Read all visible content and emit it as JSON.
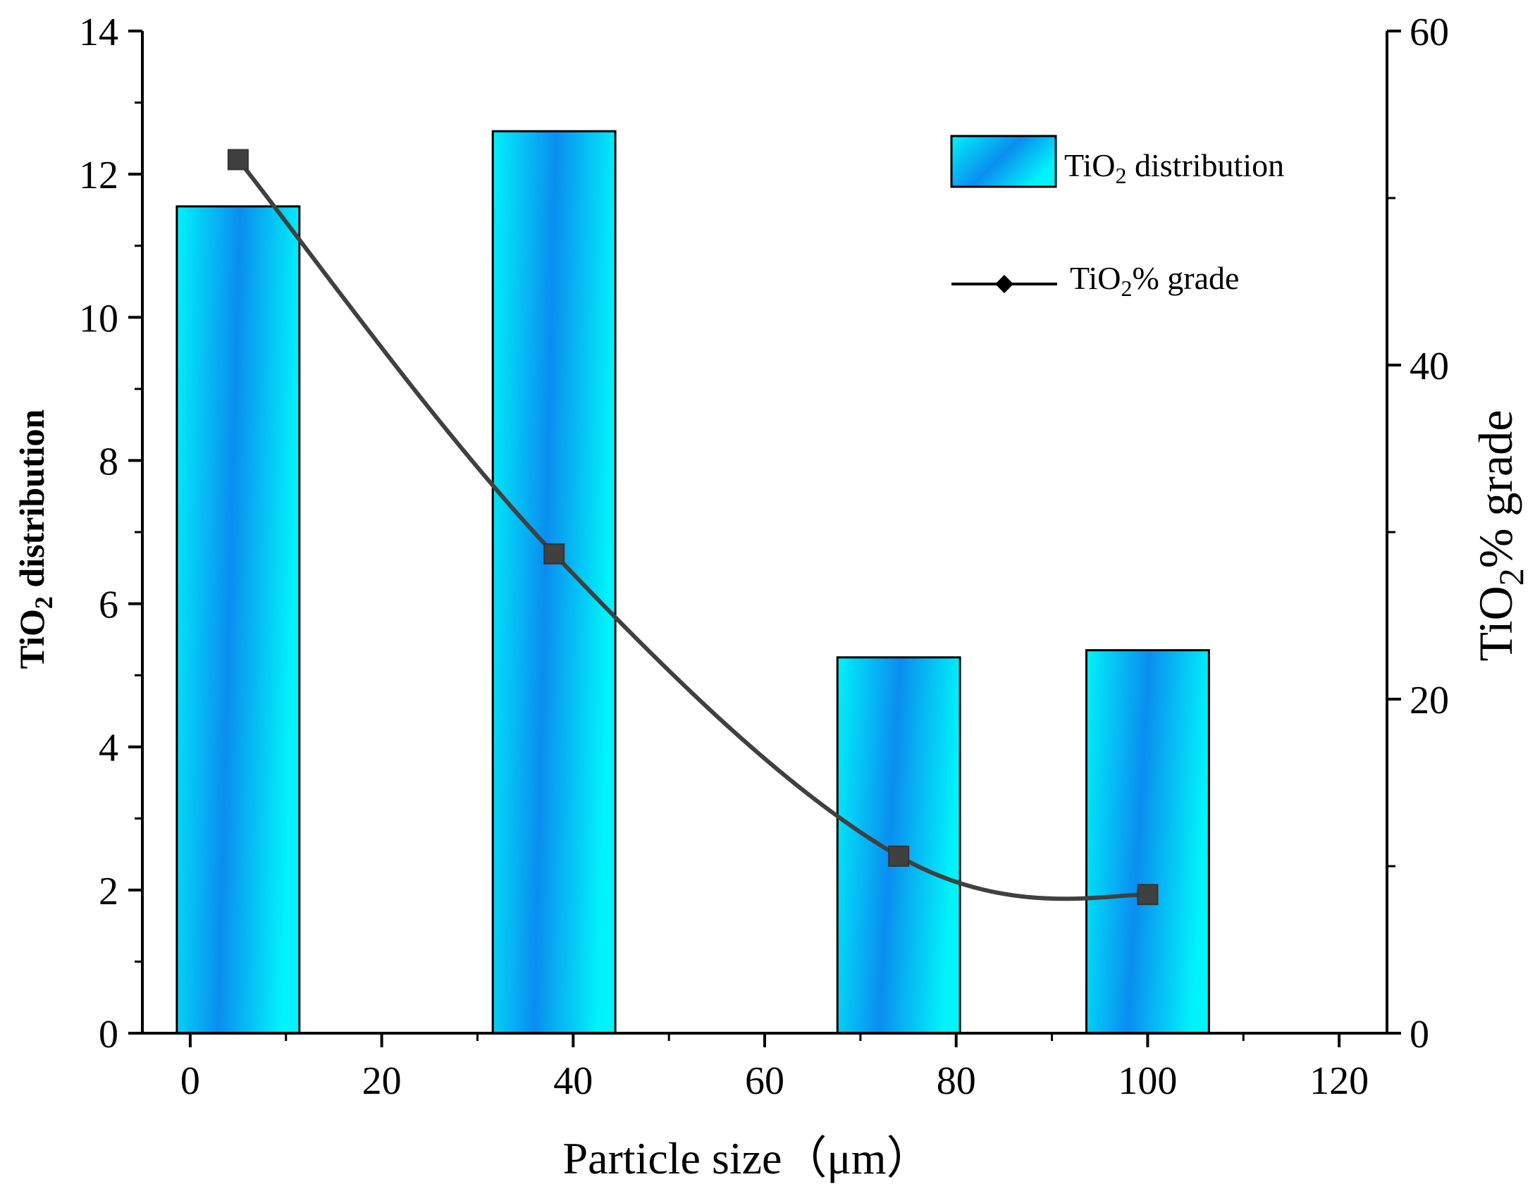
{
  "chart_data": {
    "type": "bar+line",
    "xlabel": "Particle size（μm）",
    "ylabel_left": {
      "main": "TiO",
      "sub": "2",
      "rest": " distribution"
    },
    "ylabel_right": {
      "main": "TiO",
      "sub": "2",
      "rest": "% grade"
    },
    "xlim": [
      -5,
      125
    ],
    "ylim_left": [
      0,
      14
    ],
    "ylim_right": [
      0,
      60
    ],
    "x_ticks": [
      "0",
      "20",
      "40",
      "60",
      "80",
      "100",
      "120"
    ],
    "x_tick_values": [
      0,
      20,
      40,
      60,
      80,
      100,
      120
    ],
    "y_left_ticks": [
      "0",
      "2",
      "4",
      "6",
      "8",
      "10",
      "12",
      "14"
    ],
    "y_left_tick_values": [
      0,
      2,
      4,
      6,
      8,
      10,
      12,
      14
    ],
    "y_right_ticks": [
      "0",
      "20",
      "40",
      "60"
    ],
    "y_right_tick_values": [
      0,
      20,
      40,
      60
    ],
    "y_right_minor_values": [
      10,
      30,
      50
    ],
    "series": [
      {
        "name": {
          "main": "TiO",
          "sub": "2",
          "rest": " distribution"
        },
        "kind": "bar",
        "axis": "left",
        "x": [
          5,
          38,
          74,
          100
        ],
        "values": [
          11.55,
          12.6,
          5.25,
          5.35
        ],
        "bar_width": 12.8,
        "color_dark": "#0a8ef0",
        "color_light": "#00f2fa"
      },
      {
        "name": {
          "main": "TiO",
          "sub": "2",
          "rest": "%  grade"
        },
        "kind": "line",
        "axis": "right",
        "x": [
          5,
          38,
          74,
          100
        ],
        "values": [
          52.3,
          28.7,
          10.6,
          8.3
        ],
        "color": "#404040"
      }
    ],
    "legend_position": "top-right",
    "grid": false
  }
}
